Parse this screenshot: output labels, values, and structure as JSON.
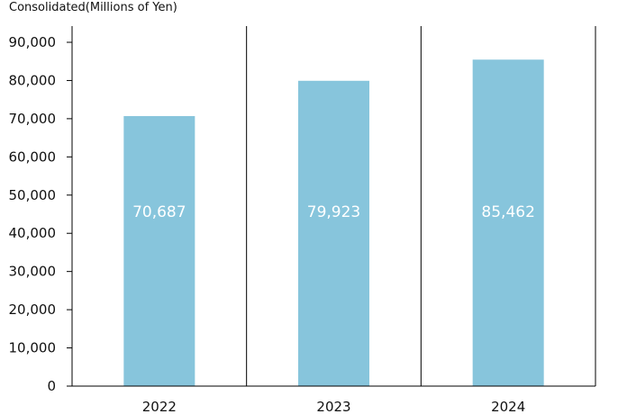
{
  "chart_data": {
    "type": "bar",
    "title": "Consolidated(Millions of Yen)",
    "categories": [
      "2022",
      "2023",
      "2024"
    ],
    "values": [
      70687,
      79923,
      85462
    ],
    "value_labels": [
      "70,687",
      "79,923",
      "85,462"
    ],
    "ylim": [
      0,
      90000
    ],
    "yticks": [
      0,
      10000,
      20000,
      30000,
      40000,
      50000,
      60000,
      70000,
      80000,
      90000
    ],
    "ytick_labels": [
      "0",
      "10,000",
      "20,000",
      "30,000",
      "40,000",
      "50,000",
      "60,000",
      "70,000",
      "80,000",
      "90,000"
    ],
    "xlabel": "",
    "ylabel": "",
    "grid": false,
    "legend": "none",
    "bar_color": "#87c5dc",
    "axis_color": "#000000"
  }
}
